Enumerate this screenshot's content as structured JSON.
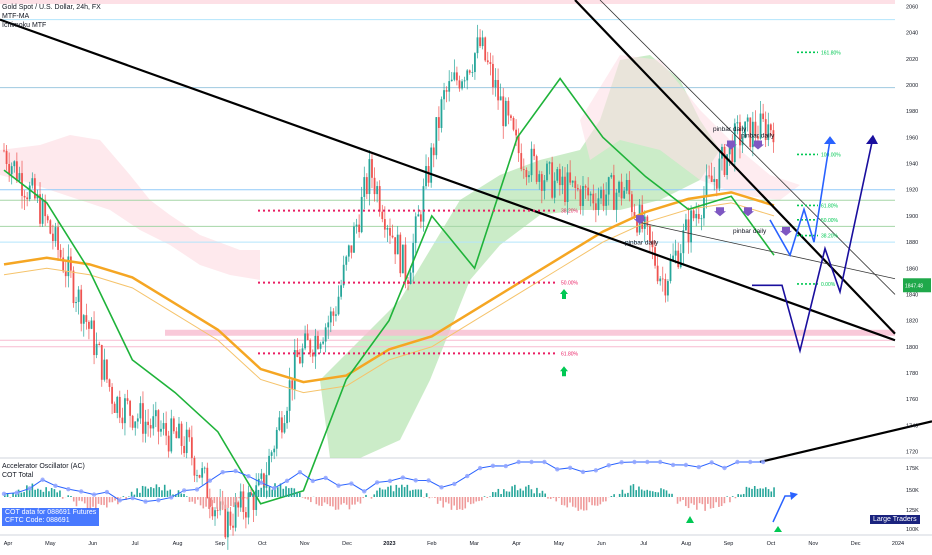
{
  "header": {
    "title": "Gold Spot / U.S. Dollar, 24h, FX",
    "indicators": [
      "MTF-MA",
      "Ichimoku MTF"
    ]
  },
  "lower_panel": {
    "indicators": [
      "Accelerator Oscillator (AC)",
      "COT Total"
    ],
    "cot_note_line1": "COT data for 088691 Futures",
    "cot_note_line2": "CFTC Code: 088691",
    "badge": "Large Traders"
  },
  "colors": {
    "green": "#26a69a",
    "ma_green": "#1fb33a",
    "orange": "#f5a623",
    "red_dotted": "#e91e63",
    "green_dotted": "#00c853",
    "blue_path": "#2962ff",
    "navy_path": "#1a0f9e",
    "ichimoku_green": "#b9e6b5",
    "ichimoku_red": "#fde0e6",
    "purple_arrow": "#7e57c2",
    "price_tag": "#1fa84a",
    "black_line": "#000000"
  },
  "chart_data": [
    {
      "type": "line",
      "name": "price",
      "x": [
        "Apr",
        "May",
        "Jun",
        "Jul",
        "Aug",
        "Sep",
        "Oct",
        "Nov",
        "Dec",
        "2023",
        "Feb",
        "Mar",
        "Apr",
        "May",
        "Jun",
        "Jul",
        "Aug",
        "Sep",
        "Oct",
        "Nov",
        "Dec",
        "2024"
      ],
      "close": [
        1950,
        1905,
        1840,
        1760,
        1740,
        1725,
        1665,
        1690,
        1790,
        1825,
        1935,
        1855,
        1990,
        2030,
        1950,
        1925,
        1915,
        1920,
        1850,
        1910,
        1960,
        1970
      ],
      "ma": [
        1935,
        1910,
        1858,
        1790,
        1765,
        1735,
        1680,
        1690,
        1775,
        1820,
        1900,
        1860,
        1960,
        2005,
        1960,
        1930,
        1905,
        1915,
        1870
      ],
      "ma200": [
        1855,
        1860,
        1855,
        1845,
        1825,
        1805,
        1775,
        1765,
        1770,
        1790,
        1800,
        1820,
        1840,
        1860,
        1880,
        1895,
        1905,
        1910,
        1900
      ],
      "y_ticks": [
        2060,
        2040,
        2020,
        2000,
        1980,
        1960,
        1940,
        1920,
        1900,
        1880,
        1860,
        1840,
        1820,
        1800,
        1780,
        1760,
        1740,
        1720
      ],
      "x_ticks": [
        "Apr",
        "May",
        "Jun",
        "Jul",
        "Aug",
        "Sep",
        "Oct",
        "Nov",
        "Dec",
        "2023",
        "Feb",
        "Mar",
        "Apr",
        "May",
        "Jun",
        "Jul",
        "Aug",
        "Sep",
        "Oct",
        "Nov",
        "Dec",
        "2024"
      ],
      "ylim": [
        1715,
        2065
      ],
      "price_label": "1847.48",
      "fib_left": [
        {
          "label": "38.20%",
          "value": 1904
        },
        {
          "label": "50.00%",
          "value": 1849
        },
        {
          "label": "61.80%",
          "value": 1795
        }
      ],
      "fib_right": [
        {
          "label": "161.80%",
          "value": 2025
        },
        {
          "label": "100.00%",
          "value": 1947
        },
        {
          "label": "61.80%",
          "value": 1908
        },
        {
          "label": "50.00%",
          "value": 1897
        },
        {
          "label": "38.20%",
          "value": 1885
        },
        {
          "label": "0.00%",
          "value": 1848
        }
      ],
      "annotations": [
        {
          "text": "pinbar daily",
          "x": "Jul",
          "y": 1878
        },
        {
          "text": "pinbar daily",
          "x": "Sep",
          "y": 1963
        },
        {
          "text": "pinbar daily",
          "x": "Sep",
          "y": 1958
        },
        {
          "text": "pinbar daily",
          "x": "Sep",
          "y": 1887
        }
      ]
    },
    {
      "type": "bar",
      "name": "Accelerator Oscillator / COT Total",
      "y_ticks": [
        "175K",
        "150K",
        "125K",
        "100K"
      ],
      "ylim": [
        95000,
        180000
      ]
    }
  ]
}
